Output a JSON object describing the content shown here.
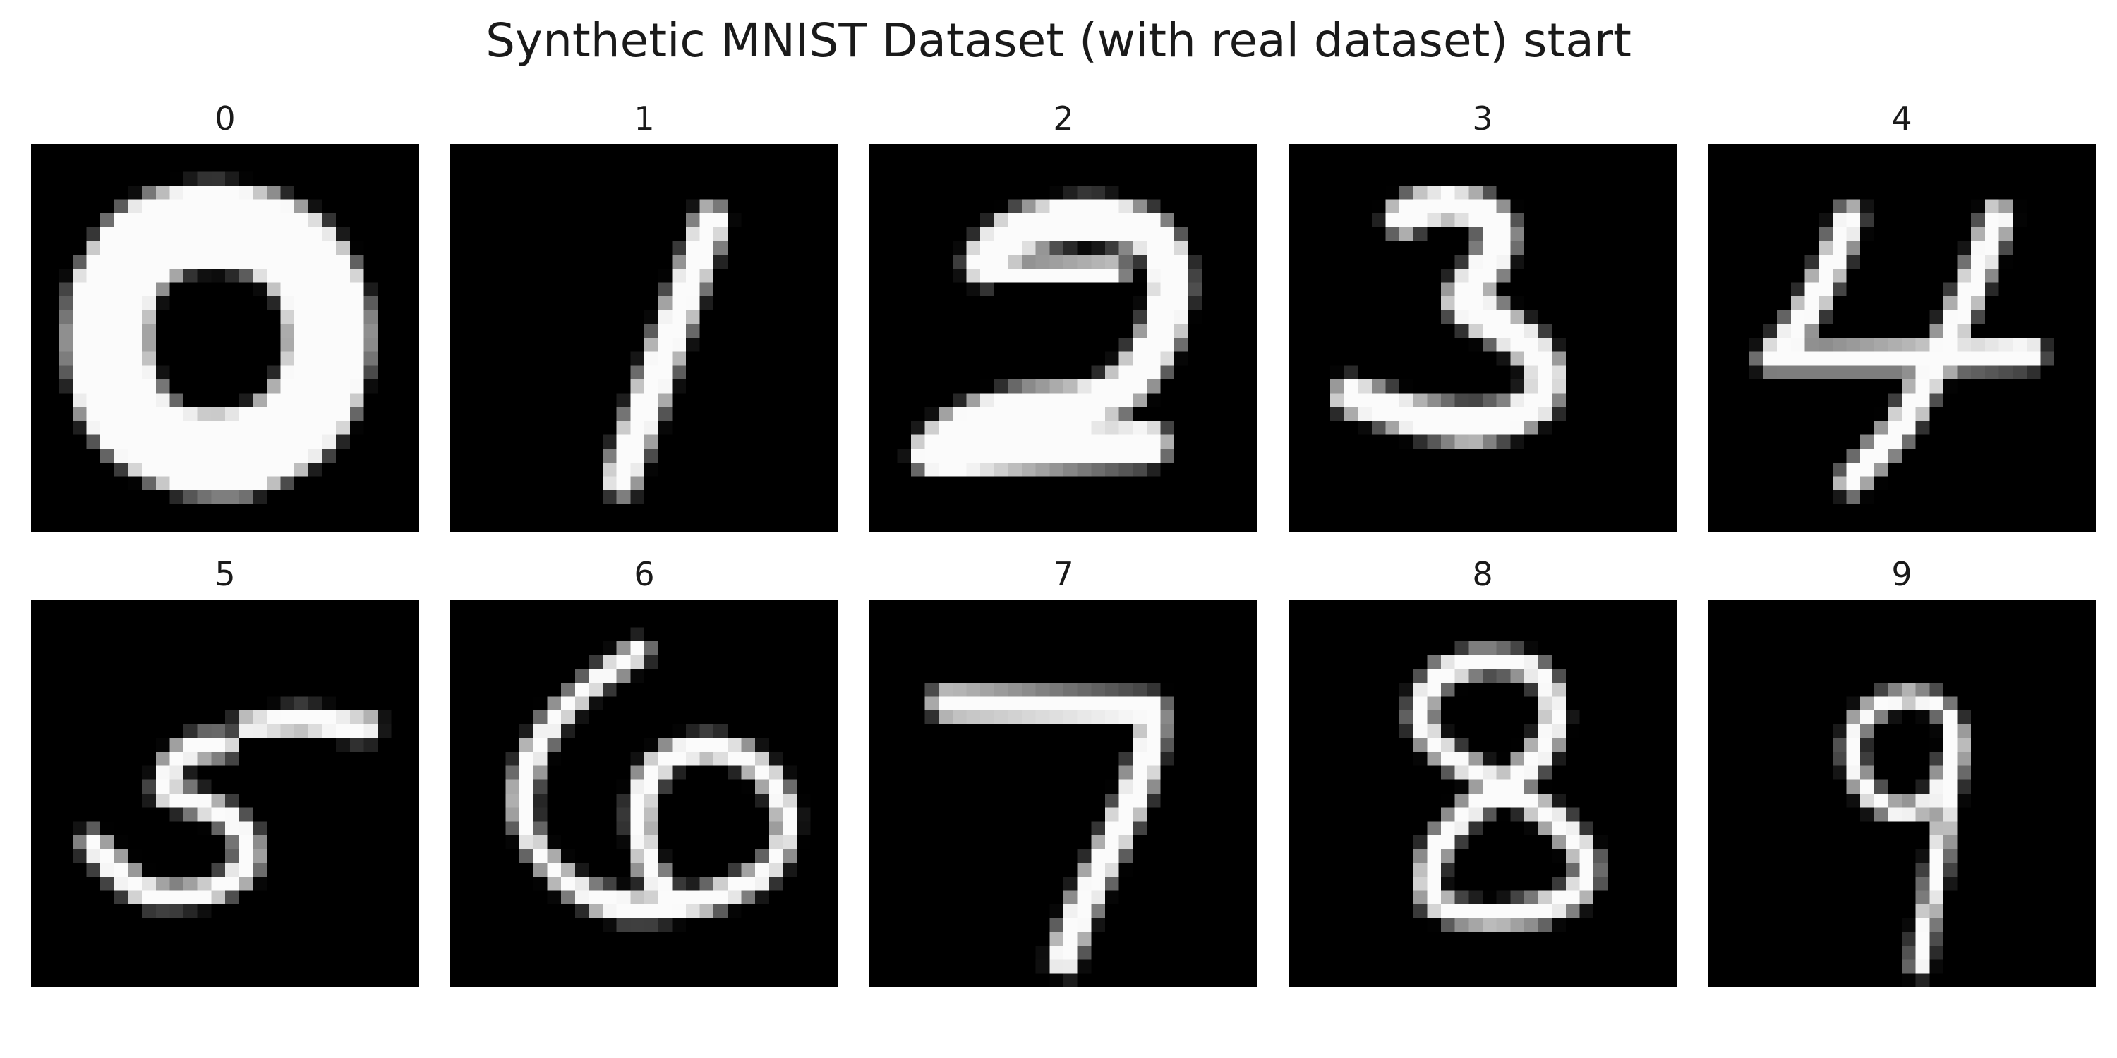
{
  "title": "Synthetic MNIST Dataset (with real dataset) start",
  "panels": [
    {
      "label": "0"
    },
    {
      "label": "1"
    },
    {
      "label": "2"
    },
    {
      "label": "3"
    },
    {
      "label": "4"
    },
    {
      "label": "5"
    },
    {
      "label": "6"
    },
    {
      "label": "7"
    },
    {
      "label": "8"
    },
    {
      "label": "9"
    }
  ],
  "colors": {
    "background": "#000000",
    "ink": "#fbfbfb",
    "page": "#ffffff"
  }
}
